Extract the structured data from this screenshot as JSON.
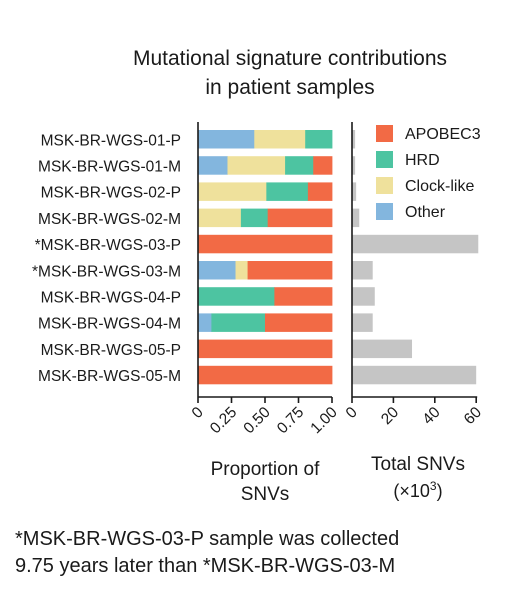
{
  "title": [
    "Mutational signature contributions",
    "in patient samples"
  ],
  "footnote": [
    "*MSK-BR-WGS-03-P sample was collected",
    "9.75 years later than *MSK-BR-WGS-03-M"
  ],
  "colors": {
    "APOBEC3": "#f26a45",
    "HRD": "#4dc4a1",
    "Clock-like": "#efe19c",
    "Other": "#83b6de",
    "total_bar": "#c5c5c5",
    "axis": "#1a1a1a"
  },
  "chart_data": [
    {
      "type": "bar",
      "orientation": "horizontal",
      "stacked": true,
      "categories": [
        "MSK-BR-WGS-01-P",
        "MSK-BR-WGS-01-M",
        "MSK-BR-WGS-02-P",
        "MSK-BR-WGS-02-M",
        "*MSK-BR-WGS-03-P",
        "*MSK-BR-WGS-03-M",
        "MSK-BR-WGS-04-P",
        "MSK-BR-WGS-04-M",
        "MSK-BR-WGS-05-P",
        "MSK-BR-WGS-05-M"
      ],
      "series": [
        {
          "name": "Other",
          "values": [
            0.42,
            0.22,
            0.0,
            0.0,
            0.0,
            0.28,
            0.0,
            0.1,
            0.0,
            0.0
          ]
        },
        {
          "name": "Clock-like",
          "values": [
            0.38,
            0.43,
            0.51,
            0.32,
            0.0,
            0.09,
            0.0,
            0.0,
            0.0,
            0.0
          ]
        },
        {
          "name": "HRD",
          "values": [
            0.2,
            0.21,
            0.31,
            0.2,
            0.0,
            0.0,
            0.57,
            0.4,
            0.0,
            0.0
          ]
        },
        {
          "name": "APOBEC3",
          "values": [
            0.0,
            0.14,
            0.18,
            0.48,
            1.0,
            0.63,
            0.43,
            0.5,
            1.0,
            1.0
          ]
        }
      ],
      "xlabel": [
        "Proportion of",
        "SNVs"
      ],
      "xticks": [
        "0",
        "0.25",
        "0.50",
        "0.75",
        "1.00"
      ],
      "xlim": [
        0,
        1
      ]
    },
    {
      "type": "bar",
      "orientation": "horizontal",
      "categories": [
        "MSK-BR-WGS-01-P",
        "MSK-BR-WGS-01-M",
        "MSK-BR-WGS-02-P",
        "MSK-BR-WGS-02-M",
        "*MSK-BR-WGS-03-P",
        "*MSK-BR-WGS-03-M",
        "MSK-BR-WGS-04-P",
        "MSK-BR-WGS-04-M",
        "MSK-BR-WGS-05-P",
        "MSK-BR-WGS-05-M"
      ],
      "values": [
        1.5,
        1.5,
        2.0,
        3.5,
        61,
        10,
        11,
        10,
        29,
        60
      ],
      "xlabel": [
        "Total SNVs",
        "(×10",
        "3",
        ")"
      ],
      "xticks": [
        "0",
        "20",
        "40",
        "60"
      ],
      "xlim": [
        0,
        60
      ]
    }
  ],
  "legend": {
    "position": "top-right",
    "items": [
      {
        "label": "APOBEC3",
        "key": "APOBEC3"
      },
      {
        "label": "HRD",
        "key": "HRD"
      },
      {
        "label": "Clock-like",
        "key": "Clock-like"
      },
      {
        "label": "Other",
        "key": "Other"
      }
    ]
  }
}
